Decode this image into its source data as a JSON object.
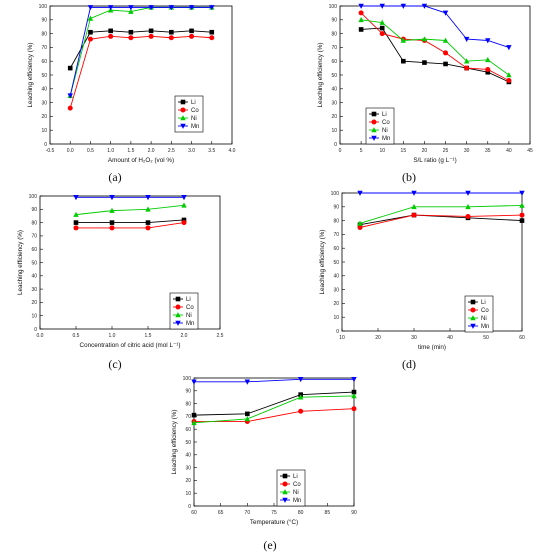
{
  "series_styles": {
    "Li": {
      "color": "#000000",
      "marker": "square"
    },
    "Co": {
      "color": "#ff0000",
      "marker": "circle"
    },
    "Ni": {
      "color": "#00cc00",
      "marker": "triangle-up"
    },
    "Mn": {
      "color": "#0000ff",
      "marker": "triangle-down"
    }
  },
  "chart_data": [
    {
      "id": "a",
      "type": "line",
      "caption": "(a)",
      "xlabel": "Amount of H₂O₂ (vol %)",
      "ylabel": "Leaching efficiency (%)",
      "xlim": [
        -0.5,
        4.0
      ],
      "ylim": [
        0,
        100
      ],
      "xticks": [
        "-0.5",
        "0.0",
        "0.5",
        "1.0",
        "1.5",
        "2.0",
        "2.5",
        "3.0",
        "3.5",
        "4.0"
      ],
      "yticks": [
        "0",
        "10",
        "20",
        "30",
        "40",
        "50",
        "60",
        "70",
        "80",
        "90",
        "100"
      ],
      "legend_position": "bottom-right",
      "x": [
        0,
        0.5,
        1.0,
        1.5,
        2.0,
        2.5,
        3.0,
        3.5
      ],
      "series": [
        {
          "name": "Li",
          "values": [
            55,
            81,
            82,
            81,
            82,
            81,
            82,
            81
          ]
        },
        {
          "name": "Co",
          "values": [
            26,
            76,
            78,
            77,
            78,
            77,
            78,
            77
          ]
        },
        {
          "name": "Ni",
          "values": [
            35,
            91,
            97,
            96,
            99,
            99,
            99,
            99
          ]
        },
        {
          "name": "Mn",
          "values": [
            35,
            99,
            99,
            99,
            99,
            99,
            99,
            99
          ]
        }
      ]
    },
    {
      "id": "b",
      "type": "line",
      "caption": "(b)",
      "xlabel": "S/L ratio (g L⁻¹)",
      "ylabel": "Leaching efficiency (%)",
      "xlim": [
        0,
        45
      ],
      "ylim": [
        0,
        100
      ],
      "xticks": [
        "0",
        "5",
        "10",
        "15",
        "20",
        "25",
        "30",
        "35",
        "40",
        "45"
      ],
      "yticks": [
        "0",
        "10",
        "20",
        "30",
        "40",
        "50",
        "60",
        "70",
        "80",
        "90",
        "100"
      ],
      "legend_position": "bottom-left",
      "x": [
        5,
        10,
        15,
        20,
        25,
        30,
        35,
        40
      ],
      "series": [
        {
          "name": "Li",
          "values": [
            83,
            84,
            60,
            59,
            58,
            55,
            52,
            45
          ]
        },
        {
          "name": "Co",
          "values": [
            95,
            80,
            76,
            75,
            66,
            55,
            54,
            46
          ]
        },
        {
          "name": "Ni",
          "values": [
            90,
            88,
            75,
            76,
            75,
            60,
            61,
            50
          ]
        },
        {
          "name": "Mn",
          "values": [
            100,
            100,
            100,
            100,
            95,
            76,
            75,
            70
          ]
        }
      ]
    },
    {
      "id": "c",
      "type": "line",
      "caption": "(c)",
      "xlabel": "Concentration of citric acid (mol L⁻¹)",
      "ylabel": "Leaching efficiency (%)",
      "xlim": [
        0,
        2.5
      ],
      "ylim": [
        0,
        100
      ],
      "xticks": [
        "0.0",
        "0.5",
        "1.0",
        "1.5",
        "2.0",
        "2.5"
      ],
      "yticks": [
        "0",
        "10",
        "20",
        "30",
        "40",
        "50",
        "60",
        "70",
        "80",
        "90",
        "100"
      ],
      "legend_position": "bottom-right",
      "x": [
        0.5,
        1.0,
        1.5,
        2.0
      ],
      "series": [
        {
          "name": "Li",
          "values": [
            80,
            80,
            80,
            82
          ]
        },
        {
          "name": "Co",
          "values": [
            76,
            76,
            76,
            80
          ]
        },
        {
          "name": "Ni",
          "values": [
            86,
            89,
            90,
            93
          ]
        },
        {
          "name": "Mn",
          "values": [
            99,
            99,
            99,
            99
          ]
        }
      ]
    },
    {
      "id": "d",
      "type": "line",
      "caption": "(d)",
      "xlabel": "time (min)",
      "ylabel": "Leaching efficiency (%)",
      "xlim": [
        10,
        60
      ],
      "ylim": [
        0,
        100
      ],
      "xticks": [
        "10",
        "20",
        "30",
        "40",
        "50",
        "60"
      ],
      "yticks": [
        "0",
        "10",
        "20",
        "30",
        "40",
        "50",
        "60",
        "70",
        "80",
        "90",
        "100"
      ],
      "legend_position": "bottom-right",
      "x": [
        15,
        30,
        45,
        60
      ],
      "series": [
        {
          "name": "Li",
          "values": [
            77,
            84,
            82,
            80
          ]
        },
        {
          "name": "Co",
          "values": [
            75,
            84,
            83,
            84
          ]
        },
        {
          "name": "Ni",
          "values": [
            78,
            90,
            90,
            91
          ]
        },
        {
          "name": "Mn",
          "values": [
            100,
            100,
            100,
            100
          ]
        }
      ]
    },
    {
      "id": "e",
      "type": "line",
      "caption": "(e)",
      "xlabel": "Temperature (°C)",
      "ylabel": "Leaching efficiency (%)",
      "xlim": [
        60,
        90
      ],
      "ylim": [
        0,
        100
      ],
      "xticks": [
        "60",
        "65",
        "70",
        "75",
        "80",
        "85",
        "90"
      ],
      "yticks": [
        "0",
        "10",
        "20",
        "30",
        "40",
        "50",
        "60",
        "70",
        "80",
        "90",
        "100"
      ],
      "legend_position": "bottom-right",
      "x": [
        60,
        70,
        80,
        90
      ],
      "series": [
        {
          "name": "Li",
          "values": [
            71,
            72,
            87,
            89
          ]
        },
        {
          "name": "Co",
          "values": [
            66,
            66,
            74,
            76
          ]
        },
        {
          "name": "Ni",
          "values": [
            65,
            68,
            85,
            86
          ]
        },
        {
          "name": "Mn",
          "values": [
            97,
            97,
            99,
            99
          ]
        }
      ]
    }
  ]
}
